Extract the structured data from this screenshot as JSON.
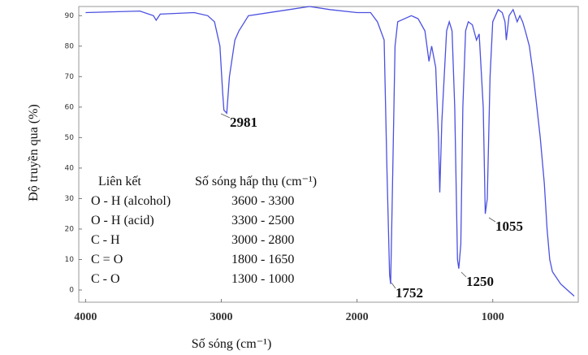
{
  "chart_data": {
    "type": "line",
    "xlabel": "Số sóng (cm⁻¹)",
    "ylabel": "Độ truyền qua (%)",
    "xlim": [
      4050,
      370
    ],
    "ylim": [
      -4,
      93
    ],
    "xticks": [
      4000,
      3000,
      2000,
      1000
    ],
    "yticks": [
      0,
      10,
      20,
      30,
      40,
      50,
      60,
      70,
      80,
      90
    ],
    "x": [
      4000,
      3600,
      3500,
      3480,
      3450,
      3200,
      3100,
      3050,
      3010,
      2990,
      2981,
      2960,
      2940,
      2900,
      2870,
      2800,
      2500,
      2350,
      2200,
      2000,
      1900,
      1850,
      1800,
      1780,
      1760,
      1752,
      1740,
      1720,
      1700,
      1600,
      1550,
      1500,
      1470,
      1450,
      1420,
      1400,
      1390,
      1375,
      1340,
      1320,
      1300,
      1280,
      1260,
      1250,
      1235,
      1220,
      1200,
      1180,
      1150,
      1120,
      1100,
      1070,
      1055,
      1040,
      1020,
      1000,
      960,
      930,
      910,
      900,
      880,
      850,
      820,
      800,
      780,
      760,
      730,
      700,
      650,
      620,
      600,
      580,
      560,
      500,
      450,
      400
    ],
    "series": [
      {
        "color": "#4b50e0",
        "values": [
          91,
          91.5,
          90,
          88.5,
          90.5,
          91,
          90,
          88,
          80,
          65,
          59,
          58,
          70,
          82,
          85,
          90,
          92,
          93,
          92,
          91,
          91,
          88,
          82,
          40,
          5,
          2,
          30,
          80,
          88,
          90,
          89,
          85,
          75,
          80,
          73,
          50,
          32,
          55,
          85,
          88,
          85,
          60,
          10,
          7,
          15,
          60,
          85,
          88,
          87,
          82,
          84,
          60,
          25,
          30,
          70,
          88,
          92,
          91,
          88,
          82,
          90,
          92,
          88,
          90,
          88,
          85,
          80,
          70,
          50,
          35,
          20,
          10,
          6,
          2,
          0,
          -2
        ]
      }
    ],
    "annotations": [
      "2981",
      "1752",
      "1250",
      "1055"
    ],
    "bond_table": {
      "header": [
        "Liên kết",
        "Số sóng hấp thụ (cm⁻¹)"
      ],
      "rows": [
        [
          "O - H (alcohol)",
          "3600 - 3300"
        ],
        [
          "O - H  (acid)",
          "3300 - 2500"
        ],
        [
          "C - H",
          "3000 - 2800"
        ],
        [
          "C = O",
          "1800 - 1650"
        ],
        [
          "C - O",
          "1300 - 1000"
        ]
      ]
    }
  }
}
